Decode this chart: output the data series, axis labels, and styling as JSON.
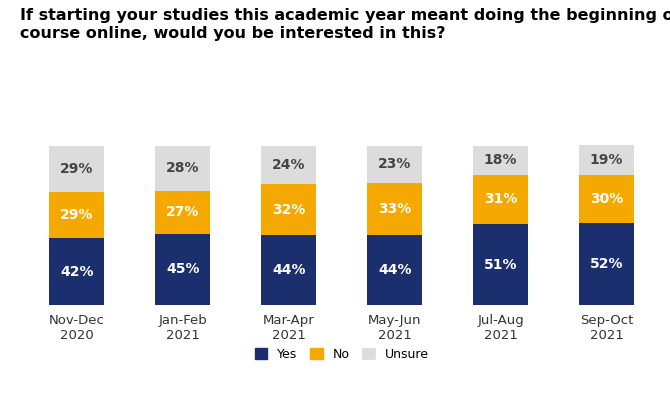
{
  "title": "If starting your studies this academic year meant doing the beginning of your\ncourse online, would you be interested in this?",
  "categories": [
    "Nov-Dec\n2020",
    "Jan-Feb\n2021",
    "Mar-Apr\n2021",
    "May-Jun\n2021",
    "Jul-Aug\n2021",
    "Sep-Oct\n2021"
  ],
  "yes": [
    42,
    45,
    44,
    44,
    51,
    52
  ],
  "no": [
    29,
    27,
    32,
    33,
    31,
    30
  ],
  "unsure": [
    29,
    28,
    24,
    23,
    18,
    19
  ],
  "yes_color": "#1b2f6e",
  "no_color": "#f5a800",
  "unsure_color": "#dcdcdc",
  "background_color": "#ffffff",
  "title_fontsize": 11.5,
  "label_fontsize": 10,
  "tick_fontsize": 9.5,
  "legend_fontsize": 9,
  "bar_width": 0.52
}
